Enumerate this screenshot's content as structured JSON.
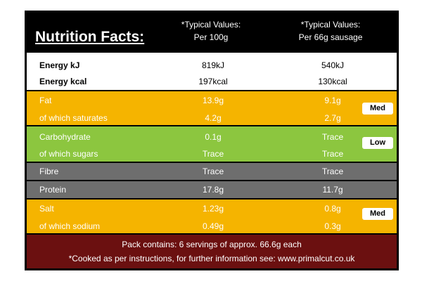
{
  "header": {
    "title": "Nutrition Facts:",
    "columns": [
      {
        "line1": "*Typical Values:",
        "line2": "Per 100g"
      },
      {
        "line1": "*Typical Values:",
        "line2": "Per 66g sausage"
      }
    ]
  },
  "groups": [
    {
      "rows": [
        {
          "label": "Energy kJ",
          "per_100g": "819kJ",
          "per_serving": "540kJ"
        },
        {
          "label": "Energy kcal",
          "per_100g": "197kcal",
          "per_serving": "130kcal"
        }
      ]
    },
    {
      "rating": "Med",
      "rows": [
        {
          "label": "Fat",
          "per_100g": "13.9g",
          "per_serving": "9.1g"
        },
        {
          "label": "of which saturates",
          "per_100g": "4.2g",
          "per_serving": "2.7g"
        }
      ]
    },
    {
      "rating": "Low",
      "rows": [
        {
          "label": "Carbohydrate",
          "per_100g": "0.1g",
          "per_serving": "Trace"
        },
        {
          "label": "of which sugars",
          "per_100g": "Trace",
          "per_serving": "Trace"
        }
      ]
    },
    {
      "rows": [
        {
          "label": "Fibre",
          "per_100g": "Trace",
          "per_serving": "Trace"
        }
      ]
    },
    {
      "rows": [
        {
          "label": "Protein",
          "per_100g": "17.8g",
          "per_serving": "11.7g"
        }
      ]
    },
    {
      "rating": "Med",
      "rows": [
        {
          "label": "Salt",
          "per_100g": "1.23g",
          "per_serving": "0.8g"
        },
        {
          "label": "of which sodium",
          "per_100g": "0.49g",
          "per_serving": "0.3g"
        }
      ]
    }
  ],
  "footer": [
    "Pack contains: 6 servings of approx. 66.6g each",
    "*Cooked as per instructions, for further information see: www.primalcut.co.uk"
  ]
}
